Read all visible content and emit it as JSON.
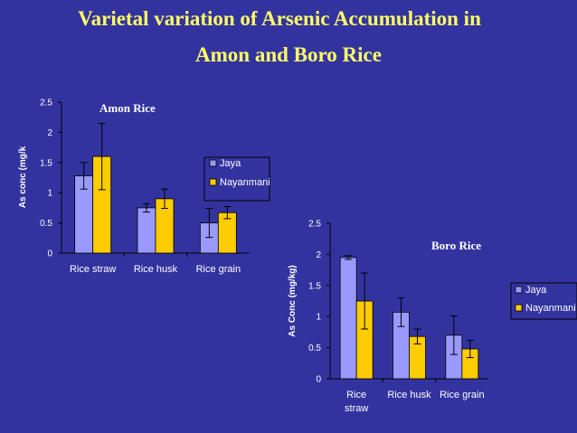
{
  "title_line1": "Varietal variation of Arsenic Accumulation in",
  "title_line2": "Amon and Boro Rice",
  "colors": {
    "background": "#3333a0",
    "jaya": "#9999ff",
    "nayanmani": "#ffcc00",
    "title": "#ffff66"
  },
  "chart_data": [
    {
      "type": "bar",
      "title": "Amon Rice",
      "ylabel": "As conc (mg/k",
      "ylim": [
        0,
        2.5
      ],
      "yticks": [
        "0",
        "0.5",
        "1",
        "1.5",
        "2",
        "2.5"
      ],
      "categories": [
        "Rice straw",
        "Rice husk",
        "Rice grain"
      ],
      "legend_position": "right",
      "series": [
        {
          "name": "Jaya",
          "values": [
            1.28,
            0.75,
            0.5
          ],
          "errors": [
            0.22,
            0.07,
            0.24
          ]
        },
        {
          "name": "Nayanmani",
          "values": [
            1.6,
            0.9,
            0.67
          ],
          "errors": [
            0.55,
            0.16,
            0.1
          ]
        }
      ]
    },
    {
      "type": "bar",
      "title": "Boro Rice",
      "ylabel": "As Conc (mg/kg)",
      "ylim": [
        0,
        2.5
      ],
      "yticks": [
        "0",
        "0.5",
        "1",
        "1.5",
        "2",
        "2.5"
      ],
      "categories": [
        "Rice straw",
        "Rice husk",
        "Rice grain"
      ],
      "legend_position": "right",
      "series": [
        {
          "name": "Jaya",
          "values": [
            1.95,
            1.07,
            0.7
          ],
          "errors": [
            0.03,
            0.23,
            0.31
          ]
        },
        {
          "name": "Nayanmani",
          "values": [
            1.25,
            0.68,
            0.48
          ],
          "errors": [
            0.45,
            0.12,
            0.14
          ]
        }
      ]
    }
  ]
}
